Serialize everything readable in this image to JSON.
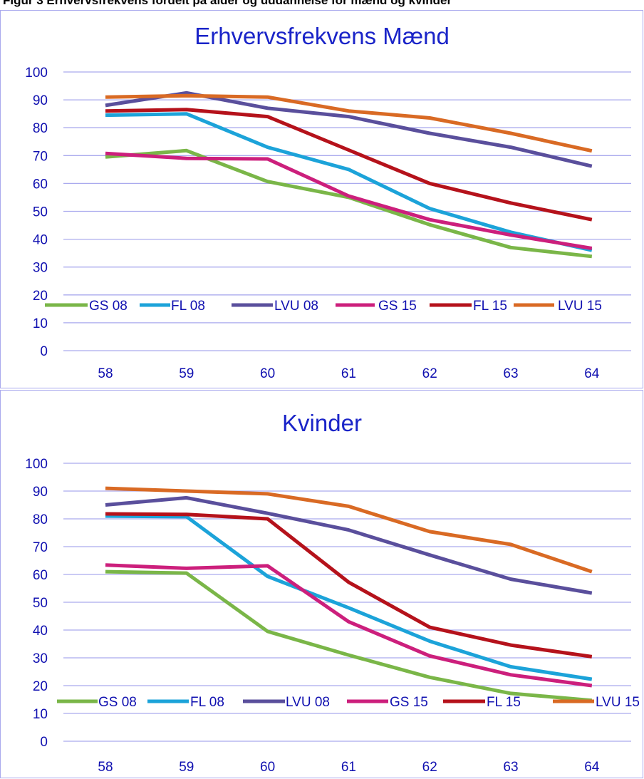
{
  "caption_fragment": "Figur 3 Erhvervsfrekvens fordelt på alder og uddannelse for mænd og kvinder",
  "colors": {
    "GS 08": "#7ab648",
    "FL 08": "#1ca3d9",
    "LVU 08": "#5a4f9c",
    "GS 15": "#cc1f7c",
    "FL 15": "#b5121b",
    "LVU 15": "#d96a24",
    "grid": "#aaaaee",
    "text": "#1010b0"
  },
  "chart_data": [
    {
      "type": "line",
      "title": "Erhvervsfrekvens Mænd",
      "xlabel": "",
      "ylabel": "",
      "categories": [
        "58",
        "59",
        "60",
        "61",
        "62",
        "63",
        "64"
      ],
      "ylim": [
        0,
        100
      ],
      "yticks": [
        "0",
        "10",
        "20",
        "30",
        "40",
        "50",
        "60",
        "70",
        "80",
        "90",
        "100"
      ],
      "grid": true,
      "legend": "inside-bottom",
      "series": [
        {
          "name": "GS 08",
          "values": [
            69.5,
            71.8,
            60.7,
            55.0,
            45.2,
            37.0,
            33.8
          ]
        },
        {
          "name": "FL 08",
          "values": [
            84.5,
            85.0,
            73.0,
            65.0,
            51.0,
            42.5,
            36.0
          ]
        },
        {
          "name": "LVU 08",
          "values": [
            88.0,
            92.5,
            87.0,
            84.0,
            78.0,
            73.0,
            66.2
          ]
        },
        {
          "name": "GS 15",
          "values": [
            70.8,
            69.0,
            68.8,
            55.5,
            47.0,
            41.5,
            36.7
          ]
        },
        {
          "name": "FL 15",
          "values": [
            86.0,
            86.5,
            84.0,
            72.0,
            60.0,
            53.0,
            47.0
          ]
        },
        {
          "name": "LVU 15",
          "values": [
            91.0,
            91.5,
            91.0,
            86.0,
            83.5,
            78.0,
            71.7
          ]
        }
      ]
    },
    {
      "type": "line",
      "title": "Kvinder",
      "xlabel": "",
      "ylabel": "",
      "categories": [
        "58",
        "59",
        "60",
        "61",
        "62",
        "63",
        "64"
      ],
      "ylim": [
        0,
        100
      ],
      "yticks": [
        "0",
        "10",
        "20",
        "30",
        "40",
        "50",
        "60",
        "70",
        "80",
        "90",
        "100"
      ],
      "grid": true,
      "legend": "inside-bottom",
      "series": [
        {
          "name": "GS 08",
          "values": [
            61.0,
            60.5,
            39.5,
            31.0,
            23.0,
            17.2,
            14.7
          ]
        },
        {
          "name": "FL 08",
          "values": [
            81.0,
            80.8,
            59.3,
            48.0,
            36.0,
            26.8,
            22.3
          ]
        },
        {
          "name": "LVU 08",
          "values": [
            85.0,
            87.6,
            82.0,
            76.0,
            67.0,
            58.3,
            53.3
          ]
        },
        {
          "name": "GS 15",
          "values": [
            63.4,
            62.2,
            63.1,
            43.0,
            30.7,
            23.9,
            20.0
          ]
        },
        {
          "name": "FL 15",
          "values": [
            81.8,
            81.6,
            80.0,
            57.2,
            41.0,
            34.6,
            30.4
          ]
        },
        {
          "name": "LVU 15",
          "values": [
            91.0,
            90.0,
            89.0,
            84.5,
            75.4,
            70.8,
            61.0
          ]
        }
      ]
    }
  ]
}
